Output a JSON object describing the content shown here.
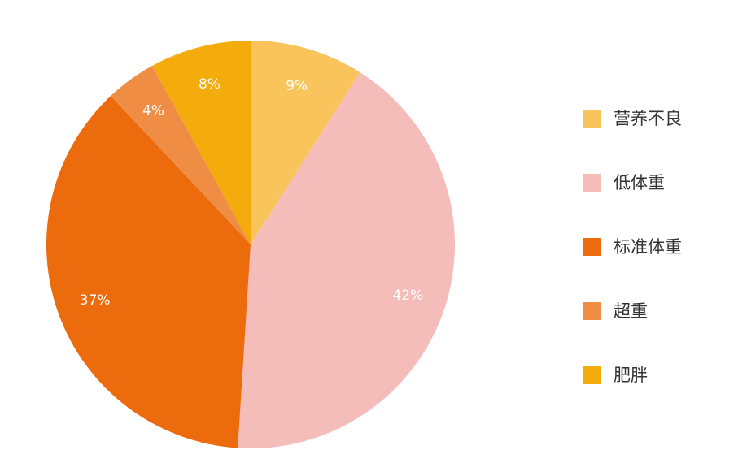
{
  "chart_data": {
    "type": "pie",
    "categories": [
      "营养不良",
      "低体重",
      "标准体重",
      "超重",
      "肥胖"
    ],
    "values": [
      9,
      42,
      37,
      4,
      8
    ],
    "value_labels": [
      "9%",
      "42%",
      "37%",
      "4%",
      "8%"
    ],
    "colors": [
      "#F9C45B",
      "#F5BDBA",
      "#EC6B0C",
      "#EF8D45",
      "#F4AB0C"
    ],
    "legend": "right"
  }
}
